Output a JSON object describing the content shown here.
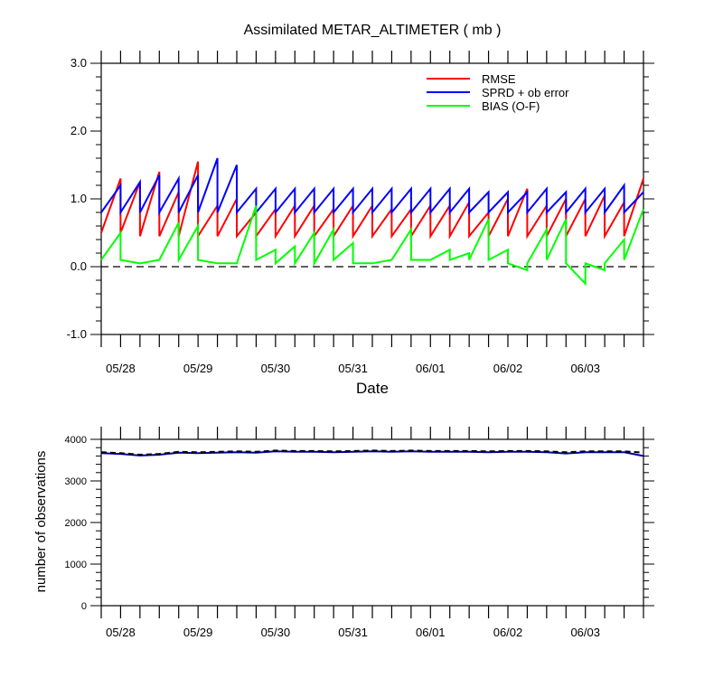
{
  "title": "Assimilated METAR_ALTIMETER ( mb )",
  "colors": {
    "rmse": "#ff0000",
    "sprd": "#0000ff",
    "bias": "#00ff00",
    "axis": "#000000",
    "obs": "#0000aa"
  },
  "top_xlabel": "Date",
  "bottom_ylabel": "number of observations",
  "chart_data": [
    {
      "type": "line",
      "title": "Assimilated METAR_ALTIMETER ( mb )",
      "xlabel": "Date",
      "ylabel": "",
      "xlim": [
        0,
        7.0
      ],
      "ylim": [
        -1.0,
        3.0
      ],
      "y_ticks": [
        "-1.0",
        "0.0",
        "1.0",
        "2.0",
        "3.0"
      ],
      "y_tick_values": [
        -1.0,
        0.0,
        1.0,
        2.0,
        3.0
      ],
      "x_tick_labels": [
        "05/28",
        "05/29",
        "05/30",
        "05/31",
        "06/01",
        "06/02",
        "06/03"
      ],
      "x_tick_values": [
        0.25,
        1.25,
        2.25,
        3.25,
        4.25,
        5.25,
        6.25
      ],
      "zero_line": true,
      "legend": {
        "position": "top-right",
        "entries": [
          "RMSE",
          "SPRD + ob error",
          "BIAS (O-F)"
        ]
      },
      "series": [
        {
          "name": "RMSE",
          "color": "#ff0000",
          "x": [
            0.0,
            0.25,
            0.25,
            0.5,
            0.5,
            0.75,
            0.75,
            1.0,
            1.0,
            1.25,
            1.25,
            1.5,
            1.5,
            1.75,
            1.75,
            2.0,
            2.0,
            2.25,
            2.25,
            2.5,
            2.5,
            2.75,
            2.75,
            3.0,
            3.0,
            3.25,
            3.25,
            3.5,
            3.5,
            3.75,
            3.75,
            4.0,
            4.0,
            4.25,
            4.25,
            4.5,
            4.5,
            4.75,
            4.75,
            5.0,
            5.0,
            5.25,
            5.25,
            5.5,
            5.5,
            5.75,
            5.75,
            6.0,
            6.0,
            6.25,
            6.25,
            6.5,
            6.5,
            6.75,
            6.75,
            7.0
          ],
          "y": [
            0.5,
            1.3,
            0.5,
            1.25,
            0.45,
            1.4,
            0.45,
            1.1,
            0.45,
            1.55,
            0.45,
            0.9,
            0.45,
            1.0,
            0.45,
            0.8,
            0.45,
            0.85,
            0.45,
            0.9,
            0.45,
            0.9,
            0.45,
            0.85,
            0.45,
            0.9,
            0.45,
            0.9,
            0.45,
            0.85,
            0.45,
            0.85,
            0.45,
            0.9,
            0.45,
            0.9,
            0.45,
            0.95,
            0.45,
            0.8,
            0.45,
            1.0,
            0.45,
            1.15,
            0.45,
            0.9,
            0.45,
            1.0,
            0.45,
            1.0,
            0.45,
            1.05,
            0.45,
            0.95,
            0.45,
            1.3
          ]
        },
        {
          "name": "SPRD + ob error",
          "color": "#0000ff",
          "x": [
            0.0,
            0.25,
            0.25,
            0.5,
            0.5,
            0.75,
            0.75,
            1.0,
            1.0,
            1.25,
            1.25,
            1.5,
            1.5,
            1.75,
            1.75,
            2.0,
            2.0,
            2.25,
            2.25,
            2.5,
            2.5,
            2.75,
            2.75,
            3.0,
            3.0,
            3.25,
            3.25,
            3.5,
            3.5,
            3.75,
            3.75,
            4.0,
            4.0,
            4.25,
            4.25,
            4.5,
            4.5,
            4.75,
            4.75,
            5.0,
            5.0,
            5.25,
            5.25,
            5.5,
            5.5,
            5.75,
            5.75,
            6.0,
            6.0,
            6.25,
            6.25,
            6.5,
            6.5,
            6.75,
            6.75,
            7.0
          ],
          "y": [
            0.8,
            1.2,
            0.8,
            1.25,
            0.8,
            1.35,
            0.8,
            1.3,
            0.8,
            1.35,
            0.8,
            1.6,
            0.8,
            1.5,
            0.8,
            1.15,
            0.8,
            1.15,
            0.8,
            1.15,
            0.8,
            1.15,
            0.8,
            1.15,
            0.8,
            1.15,
            0.8,
            1.15,
            0.8,
            1.15,
            0.8,
            1.15,
            0.8,
            1.15,
            0.8,
            1.15,
            0.8,
            1.15,
            0.8,
            1.1,
            0.8,
            1.1,
            0.8,
            1.1,
            0.8,
            1.15,
            0.8,
            1.1,
            0.8,
            1.15,
            0.8,
            1.15,
            0.8,
            1.2,
            0.8,
            1.1
          ]
        },
        {
          "name": "BIAS (O-F)",
          "color": "#00ff00",
          "x": [
            0.0,
            0.25,
            0.25,
            0.5,
            0.5,
            0.75,
            0.75,
            1.0,
            1.0,
            1.25,
            1.25,
            1.5,
            1.5,
            1.75,
            1.75,
            2.0,
            2.0,
            2.25,
            2.25,
            2.5,
            2.5,
            2.75,
            2.75,
            3.0,
            3.0,
            3.25,
            3.25,
            3.5,
            3.5,
            3.75,
            3.75,
            4.0,
            4.0,
            4.25,
            4.25,
            4.5,
            4.5,
            4.75,
            4.75,
            5.0,
            5.0,
            5.25,
            5.25,
            5.5,
            5.5,
            5.75,
            5.75,
            6.0,
            6.0,
            6.25,
            6.25,
            6.5,
            6.5,
            6.75,
            6.75,
            7.0
          ],
          "y": [
            0.1,
            0.5,
            0.1,
            0.05,
            0.05,
            0.1,
            0.1,
            0.65,
            0.1,
            0.6,
            0.1,
            0.05,
            0.05,
            0.05,
            0.05,
            0.9,
            0.1,
            0.25,
            0.05,
            0.3,
            0.05,
            0.5,
            0.05,
            0.55,
            0.1,
            0.35,
            0.05,
            0.05,
            0.05,
            0.1,
            0.1,
            0.55,
            0.1,
            0.1,
            0.1,
            0.25,
            0.1,
            0.2,
            0.1,
            0.7,
            0.1,
            0.25,
            0.05,
            -0.05,
            0.05,
            0.55,
            0.1,
            0.7,
            0.05,
            -0.25,
            0.05,
            -0.05,
            0.05,
            0.4,
            0.1,
            0.85
          ]
        }
      ]
    },
    {
      "type": "line",
      "title": "",
      "xlabel": "",
      "ylabel": "number of observations",
      "xlim": [
        0,
        7.0
      ],
      "ylim": [
        0,
        4000
      ],
      "y_ticks": [
        "0",
        "1000",
        "2000",
        "3000",
        "4000"
      ],
      "y_tick_values": [
        0,
        1000,
        2000,
        3000,
        4000
      ],
      "x_tick_labels": [
        "05/28",
        "05/29",
        "05/30",
        "05/31",
        "06/01",
        "06/02",
        "06/03"
      ],
      "x_tick_values": [
        0.25,
        1.25,
        2.25,
        3.25,
        4.25,
        5.25,
        6.25
      ],
      "series": [
        {
          "name": "",
          "color": "#0000aa",
          "style": "solid",
          "x": [
            0,
            0.25,
            0.5,
            0.75,
            1.0,
            1.25,
            1.5,
            1.75,
            2.0,
            2.25,
            2.5,
            2.75,
            3.0,
            3.25,
            3.5,
            3.75,
            4.0,
            4.25,
            4.5,
            4.75,
            5.0,
            5.25,
            5.5,
            5.75,
            6.0,
            6.25,
            6.5,
            6.75,
            7.0
          ],
          "y": [
            3670,
            3650,
            3610,
            3630,
            3680,
            3670,
            3680,
            3690,
            3680,
            3710,
            3700,
            3700,
            3690,
            3700,
            3710,
            3700,
            3710,
            3700,
            3700,
            3700,
            3690,
            3700,
            3700,
            3690,
            3660,
            3690,
            3690,
            3690,
            3600
          ]
        },
        {
          "name": "",
          "color": "#000000",
          "style": "dashed",
          "x": [
            0,
            0.25,
            0.5,
            0.75,
            1.0,
            1.25,
            1.5,
            1.75,
            2.0,
            2.25,
            2.5,
            2.75,
            3.0,
            3.25,
            3.5,
            3.75,
            4.0,
            4.25,
            4.5,
            4.75,
            5.0,
            5.25,
            5.5,
            5.75,
            6.0,
            6.25,
            6.5,
            6.75,
            7.0
          ],
          "y": [
            3690,
            3670,
            3630,
            3650,
            3700,
            3690,
            3700,
            3710,
            3700,
            3730,
            3720,
            3720,
            3710,
            3720,
            3730,
            3720,
            3730,
            3720,
            3720,
            3720,
            3710,
            3720,
            3720,
            3710,
            3690,
            3710,
            3710,
            3710,
            3680
          ]
        }
      ]
    }
  ]
}
